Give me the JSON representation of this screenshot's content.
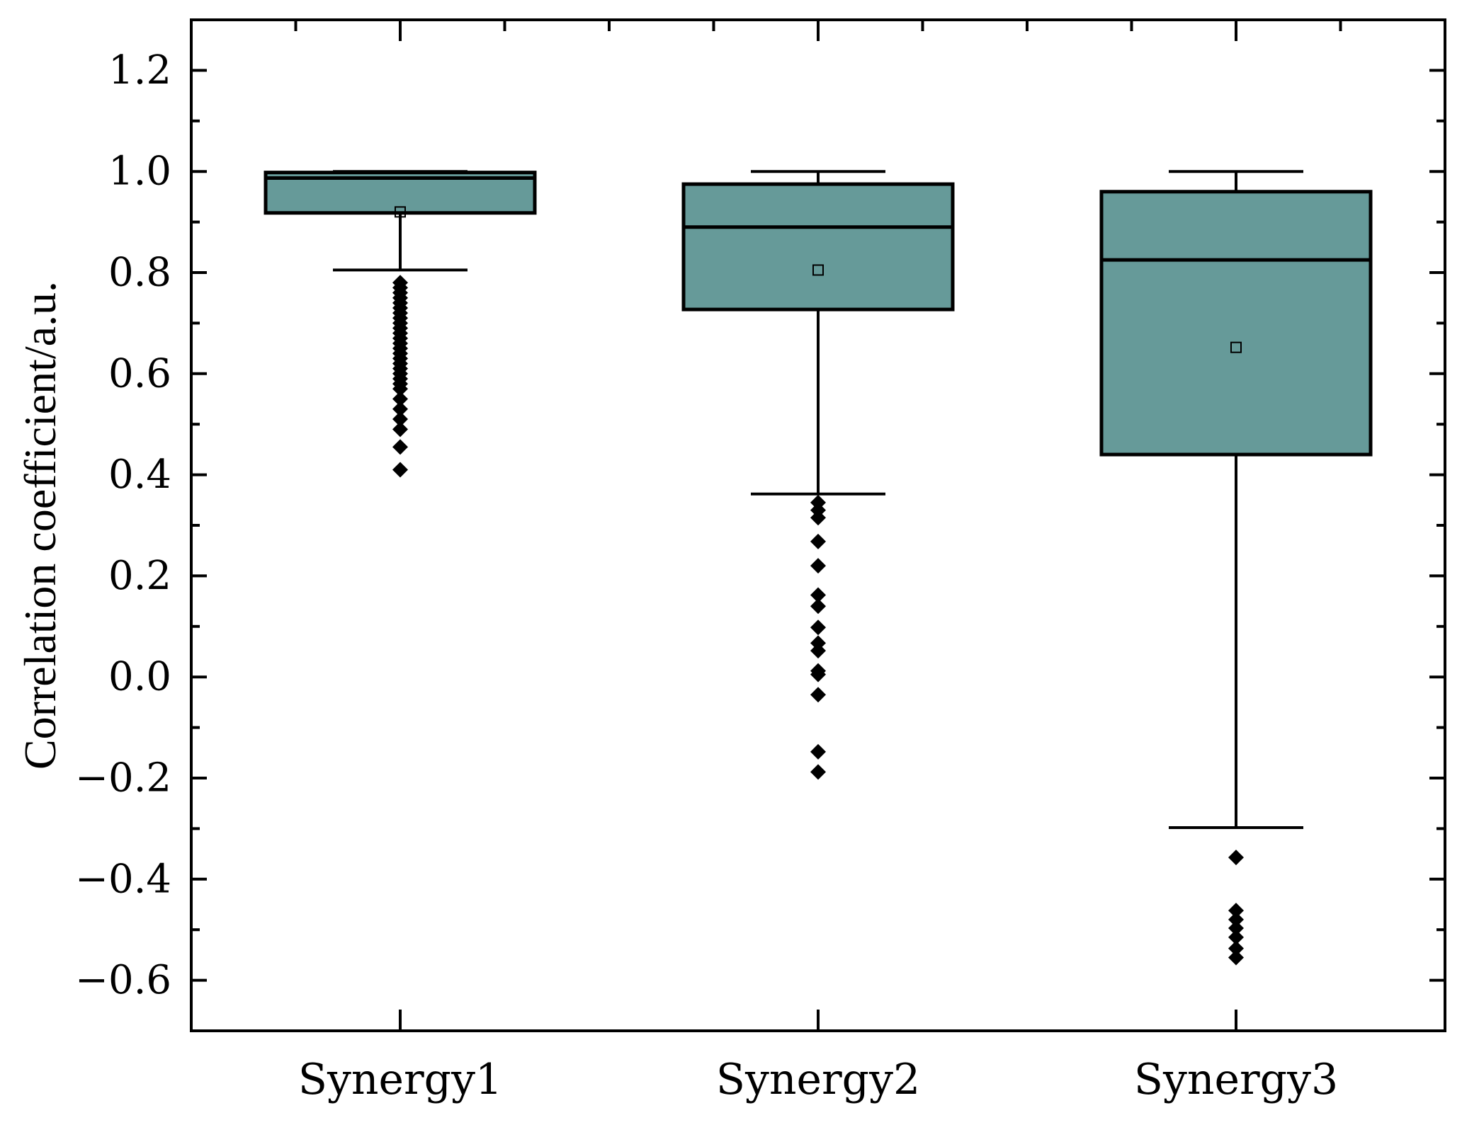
{
  "chart_data": {
    "type": "box",
    "title": "",
    "xlabel": "",
    "ylabel": "Correlation coefficient/a.u.",
    "ylim": [
      -0.7,
      1.3
    ],
    "yticks": [
      -0.6,
      -0.4,
      -0.2,
      0.0,
      0.2,
      0.4,
      0.6,
      0.8,
      1.0,
      1.2
    ],
    "ytick_labels": [
      "−0.6",
      "−0.4",
      "−0.2",
      "0.0",
      "0.2",
      "0.4",
      "0.6",
      "0.8",
      "1.0",
      "1.2"
    ],
    "categories": [
      "Synergy1",
      "Synergy2",
      "Synergy3"
    ],
    "box_color": "#669a99",
    "boxes": [
      {
        "name": "Synergy1",
        "whisker_low": 0.805,
        "q1": 0.918,
        "median": 0.987,
        "q3": 0.998,
        "whisker_high": 1.0,
        "mean": 0.92,
        "outliers": [
          0.78,
          0.77,
          0.76,
          0.75,
          0.74,
          0.73,
          0.72,
          0.71,
          0.7,
          0.69,
          0.68,
          0.67,
          0.66,
          0.65,
          0.64,
          0.63,
          0.62,
          0.61,
          0.6,
          0.59,
          0.58,
          0.57,
          0.55,
          0.53,
          0.51,
          0.49,
          0.455,
          0.41
        ]
      },
      {
        "name": "Synergy2",
        "whisker_low": 0.362,
        "q1": 0.727,
        "median": 0.89,
        "q3": 0.975,
        "whisker_high": 1.0,
        "mean": 0.805,
        "outliers": [
          0.345,
          0.33,
          0.315,
          0.268,
          0.22,
          0.162,
          0.14,
          0.098,
          0.067,
          0.052,
          0.012,
          0.005,
          -0.035,
          -0.148,
          -0.188
        ]
      },
      {
        "name": "Synergy3",
        "whisker_low": -0.298,
        "q1": 0.44,
        "median": 0.825,
        "q3": 0.96,
        "whisker_high": 1.0,
        "mean": 0.652,
        "outliers": [
          -0.357,
          -0.462,
          -0.48,
          -0.497,
          -0.515,
          -0.537,
          -0.555
        ]
      }
    ]
  }
}
